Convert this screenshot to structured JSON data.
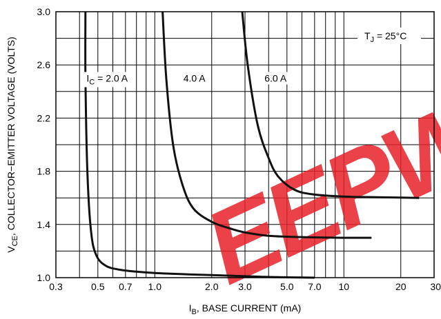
{
  "chart_data": {
    "type": "line",
    "x_scale": "log",
    "xlim": [
      0.3,
      30
    ],
    "ylim": [
      1.0,
      3.0
    ],
    "grid": true,
    "x_ticks": [
      0.3,
      0.5,
      0.7,
      1.0,
      2.0,
      3.0,
      5.0,
      7.0,
      10,
      20,
      30
    ],
    "x_tick_labels": [
      "0.3",
      "0.5",
      "0.7",
      "1.0",
      "2.0",
      "3.0",
      "5.0",
      "7.0",
      "10",
      "20",
      "30"
    ],
    "y_ticks": [
      1.0,
      1.4,
      1.8,
      2.2,
      2.6,
      3.0
    ],
    "y_tick_labels": [
      "1.0",
      "1.4",
      "1.8",
      "2.2",
      "2.6",
      "3.0"
    ],
    "xlabel": {
      "main": "I",
      "sub": "B",
      "rest": ", BASE CURRENT (mA)"
    },
    "ylabel": {
      "main": "V",
      "sub": "CE",
      "rest": ", COLLECTOR−EMITTER VOLTAGE (VOLTS)"
    },
    "annotation": {
      "main": "T",
      "sub": "J",
      "rest": " = 25°C"
    },
    "watermark": "EEPW",
    "series": [
      {
        "name": "I_C = 2.0 A",
        "label_main": "I",
        "label_sub": "C",
        "label_rest": " = 2.0 A",
        "color": "#111111",
        "x": [
          0.43,
          0.43,
          0.44,
          0.46,
          0.49,
          0.55,
          0.65,
          0.8,
          1.0,
          1.5,
          2.5,
          4.0,
          7.0
        ],
        "y": [
          3.0,
          2.5,
          1.8,
          1.35,
          1.17,
          1.09,
          1.06,
          1.045,
          1.035,
          1.025,
          1.015,
          1.005,
          1.0
        ]
      },
      {
        "name": "4.0 A",
        "label_main": "",
        "label_sub": "",
        "label_rest": "4.0 A",
        "color": "#111111",
        "x": [
          1.1,
          1.15,
          1.25,
          1.4,
          1.6,
          2.0,
          2.5,
          3.0,
          4.0,
          6.0,
          10,
          14
        ],
        "y": [
          3.0,
          2.5,
          2.0,
          1.7,
          1.52,
          1.42,
          1.37,
          1.34,
          1.315,
          1.305,
          1.3,
          1.3
        ]
      },
      {
        "name": "6.0 A",
        "label_main": "",
        "label_sub": "",
        "label_rest": "6.0 A",
        "color": "#111111",
        "x": [
          2.9,
          3.1,
          3.5,
          4.0,
          4.5,
          5.5,
          7.0,
          10,
          15,
          25
        ],
        "y": [
          3.0,
          2.6,
          2.15,
          1.9,
          1.76,
          1.66,
          1.625,
          1.61,
          1.605,
          1.6
        ]
      }
    ]
  }
}
